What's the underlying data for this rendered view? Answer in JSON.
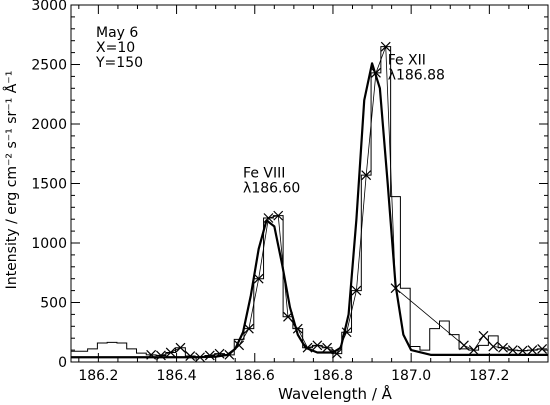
{
  "chart_data": {
    "type": "line",
    "title": "",
    "xlabel": "Wavelength / Å",
    "ylabel": "Intensity / erg cm⁻² s⁻¹ sr⁻¹ Å⁻¹",
    "xlim": [
      186.13,
      187.35
    ],
    "ylim": [
      0,
      3000
    ],
    "x_ticks": [
      186.2,
      186.4,
      186.6,
      186.8,
      187.0,
      187.2
    ],
    "x_tick_labels": [
      "186.2",
      "186.4",
      "186.6",
      "186.8",
      "187.0",
      "187.2"
    ],
    "y_ticks": [
      0,
      500,
      1000,
      1500,
      2000,
      2500,
      3000
    ],
    "y_tick_labels": [
      "0",
      "500",
      "1000",
      "1500",
      "2000",
      "2500",
      "3000"
    ],
    "grid": false,
    "info_lines": [
      "May 6",
      "X=10",
      "Y=150"
    ],
    "annotations": [
      {
        "lines": [
          "Fe VIII",
          "λ186.60"
        ],
        "x": 186.57,
        "y": 1550
      },
      {
        "lines": [
          "Fe XII",
          "λ186.88"
        ],
        "x": 186.94,
        "y": 2500
      }
    ],
    "series": [
      {
        "style": "histogram",
        "x": [
          186.135,
          186.16,
          186.185,
          186.21,
          186.235,
          186.26,
          186.285,
          186.31,
          186.335,
          186.36,
          186.385,
          186.41,
          186.435,
          186.46,
          186.485,
          186.51,
          186.535,
          186.56,
          186.585,
          186.61,
          186.635,
          186.66,
          186.685,
          186.71,
          186.735,
          186.76,
          186.785,
          186.81,
          186.835,
          186.86,
          186.885,
          186.91,
          186.935,
          186.96,
          186.985,
          187.01,
          187.035,
          187.06,
          187.085,
          187.11,
          187.135,
          187.16,
          187.185,
          187.21,
          187.235,
          187.26,
          187.285,
          187.31,
          187.335
        ],
        "y": [
          90,
          90,
          110,
          160,
          165,
          160,
          110,
          75,
          60,
          55,
          80,
          120,
          50,
          40,
          55,
          70,
          60,
          190,
          280,
          700,
          1210,
          1230,
          380,
          280,
          120,
          140,
          120,
          70,
          250,
          600,
          1570,
          2430,
          2650,
          1390,
          620,
          130,
          100,
          280,
          345,
          230,
          110,
          100,
          140,
          220,
          120,
          100,
          95,
          100,
          110
        ]
      },
      {
        "style": "line",
        "x": [
          186.13,
          186.2,
          186.3,
          186.4,
          186.45,
          186.5,
          186.53,
          186.55,
          186.57,
          186.59,
          186.61,
          186.63,
          186.65,
          186.67,
          186.69,
          186.71,
          186.73,
          186.76,
          186.8,
          186.82,
          186.84,
          186.86,
          186.88,
          186.9,
          186.92,
          186.94,
          186.96,
          186.98,
          187.0,
          187.05,
          187.1,
          187.2,
          187.35
        ],
        "y": [
          40,
          40,
          40,
          40,
          40,
          45,
          60,
          110,
          250,
          560,
          950,
          1190,
          1140,
          820,
          460,
          230,
          120,
          80,
          80,
          120,
          400,
          1200,
          2200,
          2510,
          2300,
          1500,
          650,
          230,
          100,
          60,
          60,
          60,
          60
        ]
      },
      {
        "style": "markers",
        "x": [
          186.335,
          186.36,
          186.385,
          186.41,
          186.435,
          186.46,
          186.485,
          186.51,
          186.535,
          186.56,
          186.585,
          186.61,
          186.635,
          186.66,
          186.685,
          186.71,
          186.735,
          186.76,
          186.785,
          186.81,
          186.835,
          186.86,
          186.885,
          186.91,
          186.935,
          186.96,
          187.135,
          187.16,
          187.185,
          187.21,
          187.235,
          187.26,
          187.285,
          187.31,
          187.335
        ],
        "y": [
          60,
          55,
          80,
          120,
          50,
          40,
          55,
          70,
          60,
          140,
          280,
          700,
          1210,
          1230,
          380,
          280,
          120,
          140,
          120,
          70,
          250,
          600,
          1570,
          2430,
          2650,
          620,
          140,
          100,
          220,
          130,
          120,
          100,
          95,
          100,
          110
        ]
      }
    ]
  }
}
